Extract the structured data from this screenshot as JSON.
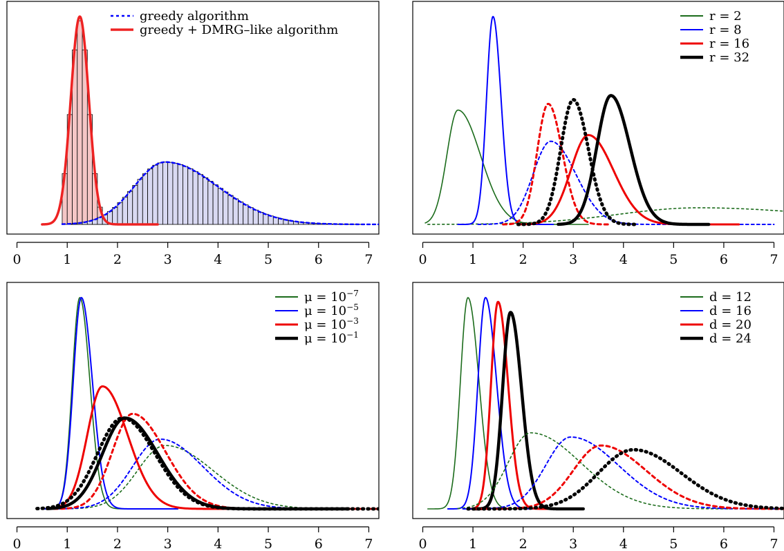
{
  "chart_data": [
    {
      "type": "line",
      "xlim": [
        -0.2,
        7.2
      ],
      "x_ticks": [
        "0",
        "1",
        "2",
        "3",
        "4",
        "5",
        "6",
        "7"
      ],
      "grid": false,
      "legend_position": "top-center",
      "legend": [
        {
          "label": "greedy algorithm",
          "color": "#0000ff",
          "width": 2.4,
          "dash": "4,4"
        },
        {
          "label": "greedy + DMRG–like algorithm",
          "color": "#ee2222",
          "width": 3.5,
          "dash": ""
        }
      ],
      "histograms": [
        {
          "name": "greedy + DMRG–like algorithm",
          "fill": "#f5c6c6",
          "range": [
            0.9,
            1.9
          ],
          "bin_width": 0.1,
          "mode": 1.25,
          "sigma_left": 0.18,
          "sigma_right": 0.18
        },
        {
          "name": "greedy algorithm",
          "fill": "#d9d9f2",
          "range": [
            1.0,
            6.9
          ],
          "bin_width": 0.1,
          "mode": 2.95,
          "sigma_left": 0.62,
          "sigma_right": 1.05
        }
      ],
      "series": [
        {
          "mode": 2.95,
          "peak": 0.3,
          "sl": 0.62,
          "sr": 1.05,
          "xmin": 0.9,
          "xmax": 7.2,
          "color": "#0000ff",
          "width": 2.4,
          "dash": "4,4"
        },
        {
          "mode": 1.25,
          "peak": 1.0,
          "sl": 0.18,
          "sr": 0.18,
          "xmin": 0.5,
          "xmax": 2.8,
          "color": "#ee2222",
          "width": 3.5,
          "dash": ""
        }
      ]
    },
    {
      "type": "line",
      "xlim": [
        -0.2,
        7.2
      ],
      "x_ticks": [
        "0",
        "1",
        "2",
        "3",
        "4",
        "5",
        "6",
        "7"
      ],
      "grid": false,
      "legend_position": "top-right",
      "legend": [
        {
          "label": "r = 2",
          "color": "#1a6b1a",
          "width": 1.6,
          "dash": ""
        },
        {
          "label": "r = 8",
          "color": "#0000ff",
          "width": 2,
          "dash": ""
        },
        {
          "label": "r = 16",
          "color": "#ee0000",
          "width": 3,
          "dash": ""
        },
        {
          "label": "r = 32",
          "color": "#000000",
          "width": 4.5,
          "dash": ""
        }
      ],
      "series": [
        {
          "mode": 0.7,
          "peak": 0.55,
          "sl": 0.22,
          "sr": 0.45,
          "xmin": 0.05,
          "xmax": 3.3,
          "color": "#1a6b1a",
          "width": 1.6,
          "dash": ""
        },
        {
          "mode": 5.5,
          "peak": 0.08,
          "sl": 1.6,
          "sr": 2.5,
          "xmin": 0.1,
          "xmax": 7.2,
          "color": "#1a6b1a",
          "width": 1.6,
          "dash": "3,4"
        },
        {
          "mode": 1.4,
          "peak": 1.0,
          "sl": 0.13,
          "sr": 0.16,
          "xmin": 0.7,
          "xmax": 2.6,
          "color": "#0000ff",
          "width": 2,
          "dash": ""
        },
        {
          "mode": 2.55,
          "peak": 0.4,
          "sl": 0.35,
          "sr": 0.5,
          "xmin": 1.1,
          "xmax": 7.0,
          "color": "#0000ff",
          "width": 2,
          "dash": "4,4"
        },
        {
          "mode": 2.5,
          "peak": 0.58,
          "sl": 0.22,
          "sr": 0.28,
          "xmin": 1.6,
          "xmax": 3.7,
          "color": "#ee0000",
          "width": 3,
          "dash": "5,5"
        },
        {
          "mode": 3.3,
          "peak": 0.43,
          "sl": 0.35,
          "sr": 0.5,
          "xmin": 1.9,
          "xmax": 6.3,
          "color": "#ee0000",
          "width": 3,
          "dash": ""
        },
        {
          "mode": 3.0,
          "peak": 0.6,
          "sl": 0.25,
          "sr": 0.3,
          "xmin": 1.9,
          "xmax": 4.3,
          "color": "#000000",
          "width": 5,
          "dash": "1.5,6"
        },
        {
          "mode": 3.75,
          "peak": 0.62,
          "sl": 0.28,
          "sr": 0.38,
          "xmin": 2.7,
          "xmax": 5.7,
          "color": "#000000",
          "width": 4.5,
          "dash": ""
        }
      ]
    },
    {
      "type": "line",
      "xlim": [
        -0.2,
        7.2
      ],
      "x_ticks": [
        "0",
        "1",
        "2",
        "3",
        "4",
        "5",
        "6",
        "7"
      ],
      "grid": false,
      "legend_position": "top-right",
      "legend": [
        {
          "label": "μ = 10",
          "sup": "−7",
          "color": "#1a6b1a",
          "width": 1.6,
          "dash": ""
        },
        {
          "label": "μ = 10",
          "sup": "−5",
          "color": "#0000ff",
          "width": 2,
          "dash": ""
        },
        {
          "label": "μ = 10",
          "sup": "−3",
          "color": "#ee0000",
          "width": 3,
          "dash": ""
        },
        {
          "label": "μ = 10",
          "sup": "−1",
          "color": "#000000",
          "width": 4.5,
          "dash": ""
        }
      ],
      "series": [
        {
          "mode": 2.95,
          "peak": 0.3,
          "sl": 0.55,
          "sr": 0.95,
          "xmin": 0.5,
          "xmax": 7.2,
          "color": "#1a6b1a",
          "width": 1.6,
          "dash": "3,4"
        },
        {
          "mode": 2.85,
          "peak": 0.33,
          "sl": 0.55,
          "sr": 0.85,
          "xmin": 0.5,
          "xmax": 6.5,
          "color": "#0000ff",
          "width": 2,
          "dash": "4,4"
        },
        {
          "mode": 1.25,
          "peak": 1.0,
          "sl": 0.15,
          "sr": 0.2,
          "xmin": 0.5,
          "xmax": 2.3,
          "color": "#1a6b1a",
          "width": 1.6,
          "dash": ""
        },
        {
          "mode": 1.28,
          "peak": 1.0,
          "sl": 0.16,
          "sr": 0.22,
          "xmin": 0.5,
          "xmax": 3.2,
          "color": "#0000ff",
          "width": 2,
          "dash": ""
        },
        {
          "mode": 1.7,
          "peak": 0.58,
          "sl": 0.3,
          "sr": 0.5,
          "xmin": 0.6,
          "xmax": 6.5,
          "color": "#ee0000",
          "width": 3,
          "dash": ""
        },
        {
          "mode": 2.3,
          "peak": 0.45,
          "sl": 0.4,
          "sr": 0.65,
          "xmin": 0.6,
          "xmax": 7.2,
          "color": "#ee0000",
          "width": 3,
          "dash": "5,5"
        },
        {
          "mode": 2.1,
          "peak": 0.43,
          "sl": 0.5,
          "sr": 0.65,
          "xmin": 0.4,
          "xmax": 7.2,
          "color": "#000000",
          "width": 5,
          "dash": "1.5,6"
        },
        {
          "mode": 2.15,
          "peak": 0.43,
          "sl": 0.45,
          "sr": 0.65,
          "xmin": 0.6,
          "xmax": 6.6,
          "color": "#000000",
          "width": 4.5,
          "dash": ""
        }
      ]
    },
    {
      "type": "line",
      "xlim": [
        -0.2,
        7.2
      ],
      "x_ticks": [
        "0",
        "1",
        "2",
        "3",
        "4",
        "5",
        "6",
        "7"
      ],
      "grid": false,
      "legend_position": "top-right",
      "legend": [
        {
          "label": "d = 12",
          "color": "#1a6b1a",
          "width": 1.6,
          "dash": ""
        },
        {
          "label": "d = 16",
          "color": "#0000ff",
          "width": 2,
          "dash": ""
        },
        {
          "label": "d = 20",
          "color": "#ee0000",
          "width": 3,
          "dash": ""
        },
        {
          "label": "d = 24",
          "color": "#000000",
          "width": 4.5,
          "dash": ""
        }
      ],
      "series": [
        {
          "mode": 0.9,
          "peak": 1.0,
          "sl": 0.15,
          "sr": 0.22,
          "xmin": 0.1,
          "xmax": 3.2,
          "color": "#1a6b1a",
          "width": 1.6,
          "dash": ""
        },
        {
          "mode": 1.25,
          "peak": 1.0,
          "sl": 0.15,
          "sr": 0.22,
          "xmin": 0.5,
          "xmax": 3.2,
          "color": "#0000ff",
          "width": 2,
          "dash": ""
        },
        {
          "mode": 1.5,
          "peak": 0.98,
          "sl": 0.14,
          "sr": 0.2,
          "xmin": 0.9,
          "xmax": 3.2,
          "color": "#ee0000",
          "width": 3,
          "dash": ""
        },
        {
          "mode": 1.75,
          "peak": 0.93,
          "sl": 0.16,
          "sr": 0.22,
          "xmin": 1.0,
          "xmax": 3.2,
          "color": "#000000",
          "width": 4.5,
          "dash": ""
        },
        {
          "mode": 2.15,
          "peak": 0.36,
          "sl": 0.45,
          "sr": 1.0,
          "xmin": 0.7,
          "xmax": 7.2,
          "color": "#1a6b1a",
          "width": 1.6,
          "dash": "3,4"
        },
        {
          "mode": 2.95,
          "peak": 0.34,
          "sl": 0.5,
          "sr": 0.95,
          "xmin": 0.8,
          "xmax": 7.2,
          "color": "#0000ff",
          "width": 2,
          "dash": "4,4"
        },
        {
          "mode": 3.55,
          "peak": 0.3,
          "sl": 0.55,
          "sr": 0.9,
          "xmin": 1.0,
          "xmax": 7.2,
          "color": "#ee0000",
          "width": 3,
          "dash": "5,5"
        },
        {
          "mode": 4.2,
          "peak": 0.28,
          "sl": 0.7,
          "sr": 0.95,
          "xmin": 0.9,
          "xmax": 7.2,
          "color": "#000000",
          "width": 5,
          "dash": "1.5,6"
        }
      ]
    }
  ]
}
